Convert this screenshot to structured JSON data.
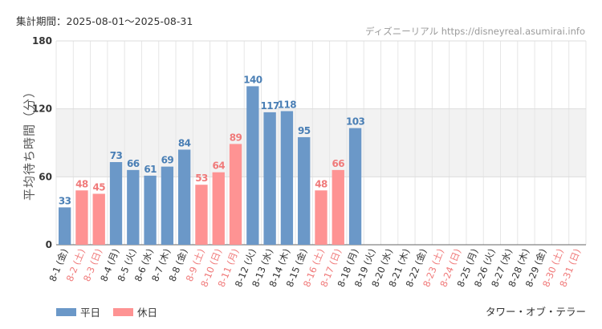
{
  "header": {
    "period": "集計期間：2025-08-01～2025-08-31",
    "source": "ディズニーリアル https://disneyreal.asumirai.info"
  },
  "footer": {
    "attraction": "タワー・オブ・テラー"
  },
  "colors": {
    "weekday": "#6b98c8",
    "holiday": "#fe9393",
    "weekday_text": "#4a7fb5",
    "holiday_text": "#f07a7a",
    "axis_text": "#333333",
    "band": "#f2f2f2",
    "grid": "#e6e6e6"
  },
  "chart_data": {
    "type": "bar",
    "ylabel": "平均待ち時間（分）",
    "ylim": [
      0,
      180
    ],
    "yticks": [
      0,
      60,
      120,
      180
    ],
    "shaded_band": [
      60,
      120
    ],
    "grid": true,
    "legend_position": "bottom-left",
    "categories": [
      "8-1 (金)",
      "8-2 (土)",
      "8-3 (日)",
      "8-4 (月)",
      "8-5 (火)",
      "8-6 (水)",
      "8-7 (木)",
      "8-8 (金)",
      "8-9 (土)",
      "8-10 (日)",
      "8-11 (月)",
      "8-12 (火)",
      "8-13 (水)",
      "8-14 (木)",
      "8-15 (金)",
      "8-16 (土)",
      "8-17 (日)",
      "8-18 (月)",
      "8-19 (火)",
      "8-20 (水)",
      "8-21 (木)",
      "8-22 (金)",
      "8-23 (土)",
      "8-24 (日)",
      "8-25 (月)",
      "8-26 (火)",
      "8-27 (水)",
      "8-28 (木)",
      "8-29 (金)",
      "8-30 (土)",
      "8-31 (日)"
    ],
    "values": [
      33,
      48,
      45,
      73,
      66,
      61,
      69,
      84,
      53,
      64,
      89,
      140,
      117,
      118,
      95,
      48,
      66,
      103,
      null,
      null,
      null,
      null,
      null,
      null,
      null,
      null,
      null,
      null,
      null,
      null,
      null
    ],
    "day_type": [
      "平日",
      "休日",
      "休日",
      "平日",
      "平日",
      "平日",
      "平日",
      "平日",
      "休日",
      "休日",
      "休日",
      "平日",
      "平日",
      "平日",
      "平日",
      "休日",
      "休日",
      "平日",
      "平日",
      "平日",
      "平日",
      "平日",
      "休日",
      "休日",
      "平日",
      "平日",
      "平日",
      "平日",
      "平日",
      "休日",
      "休日"
    ],
    "series": [
      {
        "name": "平日",
        "color": "#6b98c8"
      },
      {
        "name": "休日",
        "color": "#fe9393"
      }
    ]
  }
}
